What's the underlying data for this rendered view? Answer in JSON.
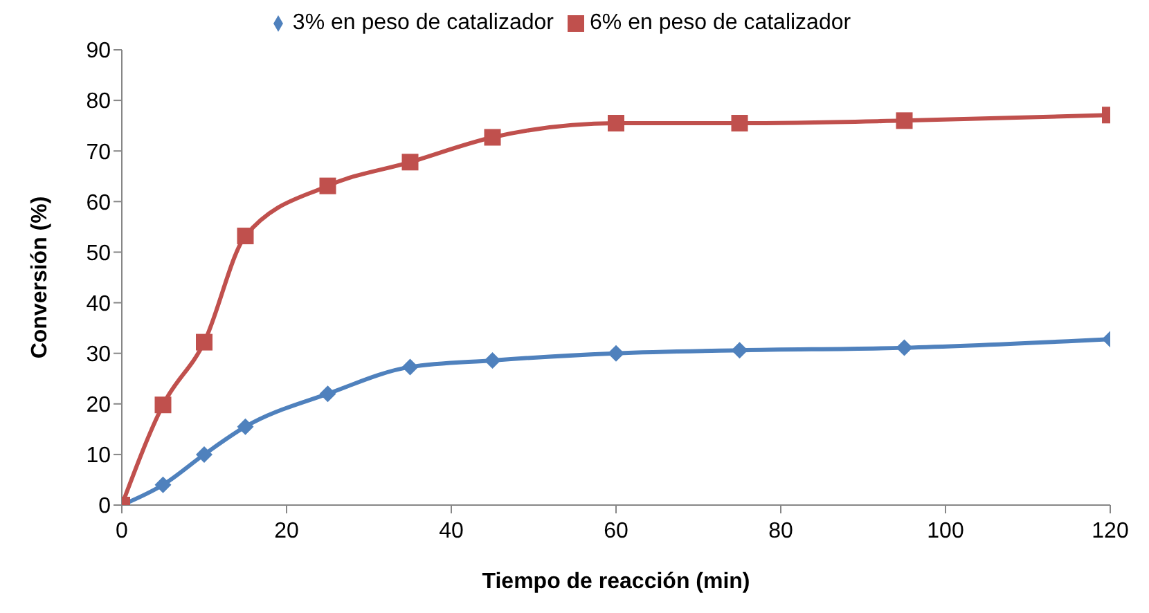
{
  "chart_data": {
    "type": "line",
    "xlabel": "Tiempo de reacción (min)",
    "ylabel": "Conversión (%)",
    "xlim": [
      0,
      120
    ],
    "xticks": [
      0,
      20,
      40,
      60,
      80,
      100,
      120
    ],
    "ylim": [
      0,
      90
    ],
    "yticks": [
      0,
      10,
      20,
      30,
      40,
      50,
      60,
      70,
      80,
      90
    ],
    "grid": false,
    "legend": "top",
    "line_style": "solid",
    "series": [
      {
        "name": "3% en peso de catalizador",
        "color": "#4f81bd",
        "marker": "diamond",
        "x": [
          0,
          5,
          10,
          15,
          25,
          35,
          45,
          60,
          75,
          95,
          120
        ],
        "values": [
          0,
          4,
          10,
          15.5,
          22,
          27.3,
          28.6,
          30,
          30.6,
          31.1,
          32.8
        ]
      },
      {
        "name": "6% en peso de catalizador",
        "color": "#c0504d",
        "marker": "square",
        "x": [
          0,
          5,
          10,
          15,
          25,
          35,
          45,
          60,
          75,
          95,
          120
        ],
        "values": [
          0,
          19.8,
          32.2,
          53.2,
          63.1,
          67.8,
          72.7,
          75.5,
          75.5,
          76,
          77.1
        ]
      }
    ]
  }
}
